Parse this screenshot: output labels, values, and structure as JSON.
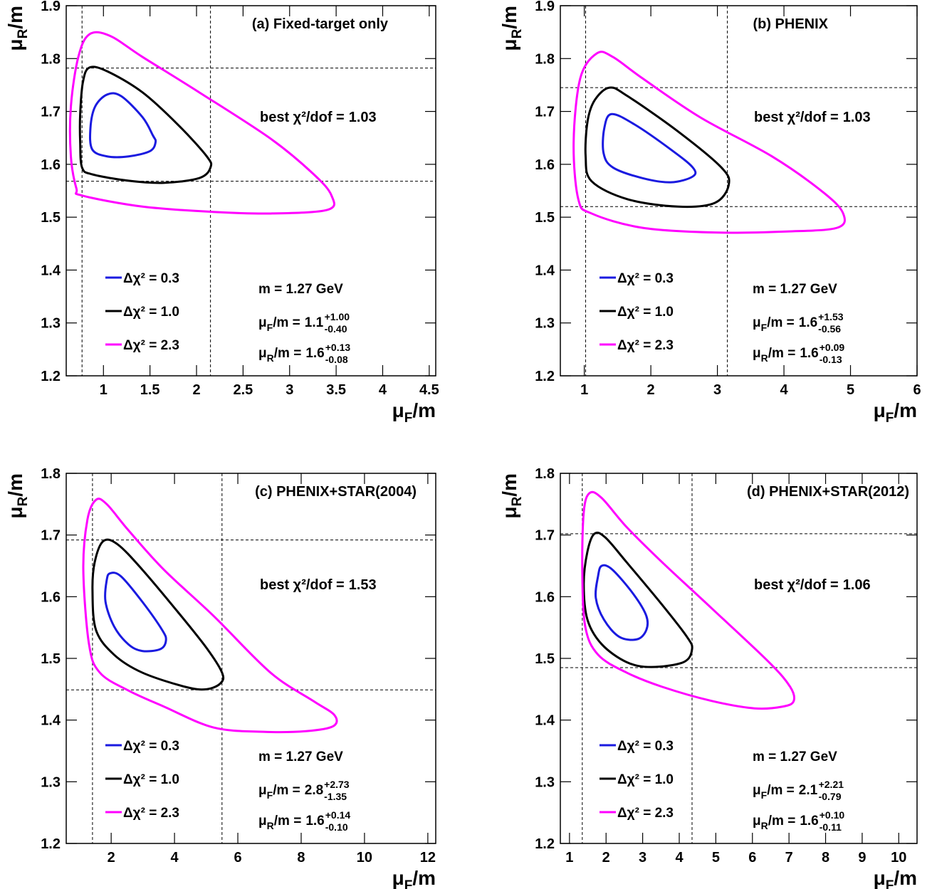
{
  "chart_data": [
    {
      "type": "contour",
      "title": "(a) Fixed-target only",
      "x_label": {
        "symbol": "μ",
        "sub": "F",
        "tail": "/m"
      },
      "y_label": {
        "symbol": "μ",
        "sub": "R",
        "tail": "/m"
      },
      "xlim": [
        0.6,
        4.57
      ],
      "ylim": [
        1.2,
        1.9
      ],
      "xticks": [
        1,
        1.5,
        2,
        2.5,
        3,
        3.5,
        4,
        4.5
      ],
      "yticks": [
        1.2,
        1.3,
        1.4,
        1.5,
        1.6,
        1.7,
        1.8,
        1.9
      ],
      "ref_lines": {
        "x": [
          0.77,
          2.15
        ],
        "y": [
          1.568,
          1.782
        ]
      },
      "best_fit": {
        "label": "best χ²/dof =",
        "value": 1.03
      },
      "mass": "m = 1.27 GeV",
      "results": [
        {
          "symbol": "μ",
          "sub": "F",
          "text": "/m =",
          "value": 1.1,
          "plus": "+1.00",
          "minus": "-0.40"
        },
        {
          "symbol": "μ",
          "sub": "R",
          "text": "/m =",
          "value": 1.6,
          "plus": "+0.13",
          "minus": "-0.08"
        }
      ],
      "series": [
        {
          "name": "Δχ² = 0.3",
          "color": "#1a1ae0",
          "x": [
            1.04,
            1.19,
            1.42,
            1.53,
            1.56,
            1.5,
            1.27,
            1.04,
            0.88,
            0.86,
            0.91
          ],
          "y": [
            1.732,
            1.729,
            1.689,
            1.655,
            1.642,
            1.625,
            1.615,
            1.615,
            1.628,
            1.668,
            1.709
          ]
        },
        {
          "name": "Δχ² = 1.0",
          "color": "#000000",
          "x": [
            0.85,
            1.04,
            1.42,
            1.8,
            2.11,
            2.15,
            2.03,
            1.65,
            1.27,
            0.88,
            0.77,
            0.75,
            0.75,
            0.78
          ],
          "y": [
            1.783,
            1.776,
            1.736,
            1.675,
            1.615,
            1.594,
            1.574,
            1.565,
            1.569,
            1.581,
            1.594,
            1.642,
            1.695,
            1.756
          ]
        },
        {
          "name": "Δχ² = 2.3",
          "color": "#ff00ff",
          "x": [
            0.85,
            1.07,
            1.42,
            2.03,
            2.8,
            3.26,
            3.45,
            3.41,
            2.8,
            2.18,
            1.42,
            0.77,
            0.71,
            0.65,
            0.65,
            0.73
          ],
          "y": [
            1.846,
            1.843,
            1.803,
            1.736,
            1.648,
            1.581,
            1.541,
            1.514,
            1.507,
            1.51,
            1.52,
            1.541,
            1.554,
            1.615,
            1.709,
            1.803
          ]
        }
      ]
    },
    {
      "type": "contour",
      "title": "(b) PHENIX",
      "x_label": {
        "symbol": "μ",
        "sub": "F",
        "tail": "/m"
      },
      "y_label": {
        "symbol": "μ",
        "sub": "R",
        "tail": "/m"
      },
      "xlim": [
        0.64,
        6
      ],
      "ylim": [
        1.2,
        1.9
      ],
      "xticks": [
        1,
        2,
        3,
        4,
        5,
        6
      ],
      "yticks": [
        1.2,
        1.3,
        1.4,
        1.5,
        1.6,
        1.7,
        1.8,
        1.9
      ],
      "ref_lines": {
        "x": [
          1.02,
          3.15
        ],
        "y": [
          1.52,
          1.745
        ]
      },
      "best_fit": {
        "label": "best χ²/dof =",
        "value": 1.03
      },
      "mass": "m = 1.27 GeV",
      "results": [
        {
          "symbol": "μ",
          "sub": "F",
          "text": "/m =",
          "value": 1.6,
          "plus": "+1.53",
          "minus": "-0.56"
        },
        {
          "symbol": "μ",
          "sub": "R",
          "text": "/m =",
          "value": 1.6,
          "plus": "+0.09",
          "minus": "-0.13"
        }
      ],
      "series": [
        {
          "name": "Δχ² = 0.3",
          "color": "#1a1ae0",
          "x": [
            1.41,
            1.76,
            2.3,
            2.63,
            2.63,
            2.3,
            1.87,
            1.43,
            1.29,
            1.3
          ],
          "y": [
            1.695,
            1.675,
            1.628,
            1.594,
            1.577,
            1.566,
            1.574,
            1.594,
            1.621,
            1.668
          ]
        },
        {
          "name": "Δχ² = 1.0",
          "color": "#000000",
          "x": [
            1.38,
            1.65,
            2.41,
            3.06,
            3.17,
            2.96,
            2.41,
            1.65,
            1.11,
            1.02,
            1.05,
            1.16
          ],
          "y": [
            1.745,
            1.729,
            1.662,
            1.594,
            1.561,
            1.527,
            1.52,
            1.534,
            1.568,
            1.615,
            1.682,
            1.722
          ]
        },
        {
          "name": "Δχ² = 2.3",
          "color": "#ff00ff",
          "x": [
            1.19,
            1.43,
            1.87,
            2.74,
            3.82,
            4.59,
            4.89,
            4.8,
            4.04,
            2.96,
            1.87,
            1.11,
            0.91,
            0.84,
            0.94
          ],
          "y": [
            1.81,
            1.803,
            1.763,
            1.689,
            1.615,
            1.547,
            1.507,
            1.48,
            1.473,
            1.471,
            1.48,
            1.507,
            1.534,
            1.642,
            1.763
          ]
        }
      ]
    },
    {
      "type": "contour",
      "title": "(c) PHENIX+STAR(2004)",
      "x_label": {
        "symbol": "μ",
        "sub": "F",
        "tail": "/m"
      },
      "y_label": {
        "symbol": "μ",
        "sub": "R",
        "tail": "/m"
      },
      "xlim": [
        0.58,
        12.25
      ],
      "ylim": [
        1.2,
        1.8
      ],
      "xticks": [
        2,
        4,
        6,
        8,
        10,
        12
      ],
      "yticks": [
        1.2,
        1.3,
        1.4,
        1.5,
        1.6,
        1.7,
        1.8
      ],
      "ref_lines": {
        "x": [
          1.41,
          5.5
        ],
        "y": [
          1.449,
          1.692
        ]
      },
      "best_fit": {
        "label": "best χ²/dof =",
        "value": 1.53
      },
      "mass": "m = 1.27 GeV",
      "results": [
        {
          "symbol": "μ",
          "sub": "F",
          "text": "/m =",
          "value": 2.8,
          "plus": "+2.73",
          "minus": "-1.35"
        },
        {
          "symbol": "μ",
          "sub": "R",
          "text": "/m =",
          "value": 1.6,
          "plus": "+0.14",
          "minus": "-0.10"
        }
      ],
      "series": [
        {
          "name": "Δχ² = 0.3",
          "color": "#1a1ae0",
          "x": [
            1.97,
            2.31,
            2.98,
            3.61,
            3.73,
            3.55,
            2.98,
            2.54,
            2.09,
            1.82,
            1.86
          ],
          "y": [
            1.638,
            1.633,
            1.592,
            1.546,
            1.529,
            1.515,
            1.512,
            1.523,
            1.552,
            1.592,
            1.627
          ]
        },
        {
          "name": "Δχ² = 1.0",
          "color": "#000000",
          "x": [
            1.75,
            2.2,
            2.98,
            4.11,
            5.01,
            5.5,
            5.46,
            5.01,
            4.33,
            2.98,
            2.09,
            1.52,
            1.41,
            1.48
          ],
          "y": [
            1.69,
            1.685,
            1.644,
            1.575,
            1.517,
            1.477,
            1.46,
            1.45,
            1.454,
            1.477,
            1.506,
            1.546,
            1.61,
            1.656
          ]
        },
        {
          "name": "Δχ² = 2.3",
          "color": "#ff00ff",
          "x": [
            1.52,
            1.86,
            2.54,
            3.66,
            5.23,
            7.03,
            8.38,
            9.05,
            9.01,
            8.15,
            6.8,
            5.23,
            3.66,
            2.54,
            1.64,
            1.3,
            1.12,
            1.25
          ],
          "y": [
            1.757,
            1.75,
            1.708,
            1.644,
            1.569,
            1.477,
            1.431,
            1.408,
            1.39,
            1.382,
            1.381,
            1.388,
            1.422,
            1.448,
            1.477,
            1.523,
            1.644,
            1.725
          ]
        }
      ]
    },
    {
      "type": "contour",
      "title": "(d) PHENIX+STAR(2012)",
      "x_label": {
        "symbol": "μ",
        "sub": "F",
        "tail": "/m"
      },
      "y_label": {
        "symbol": "μ",
        "sub": "R",
        "tail": "/m"
      },
      "xlim": [
        0.75,
        10.5
      ],
      "ylim": [
        1.2,
        1.8
      ],
      "xticks": [
        1,
        2,
        3,
        4,
        5,
        6,
        7,
        8,
        9,
        10
      ],
      "yticks": [
        1.2,
        1.3,
        1.4,
        1.5,
        1.6,
        1.7,
        1.8
      ],
      "ref_lines": {
        "x": [
          1.35,
          4.35
        ],
        "y": [
          1.485,
          1.702
        ]
      },
      "best_fit": {
        "label": "best χ²/dof =",
        "value": 1.06
      },
      "mass": "m = 1.27 GeV",
      "results": [
        {
          "symbol": "μ",
          "sub": "F",
          "text": "/m =",
          "value": 2.1,
          "plus": "+2.21",
          "minus": "-0.79"
        },
        {
          "symbol": "μ",
          "sub": "R",
          "text": "/m =",
          "value": 1.6,
          "plus": "+0.10",
          "minus": "-0.11"
        }
      ],
      "series": [
        {
          "name": "Δχ² = 0.3",
          "color": "#1a1ae0",
          "x": [
            1.88,
            2.17,
            2.75,
            3.1,
            3.1,
            2.85,
            2.36,
            1.94,
            1.72,
            1.78
          ],
          "y": [
            1.65,
            1.644,
            1.604,
            1.569,
            1.546,
            1.531,
            1.535,
            1.563,
            1.598,
            1.633
          ]
        },
        {
          "name": "Δχ² = 1.0",
          "color": "#000000",
          "x": [
            1.68,
            1.98,
            2.56,
            3.53,
            4.21,
            4.35,
            4.12,
            3.24,
            2.56,
            1.88,
            1.49,
            1.39,
            1.49
          ],
          "y": [
            1.702,
            1.696,
            1.656,
            1.587,
            1.535,
            1.515,
            1.494,
            1.486,
            1.494,
            1.523,
            1.563,
            1.621,
            1.673
          ]
        },
        {
          "name": "Δχ² = 2.3",
          "color": "#ff00ff",
          "x": [
            1.55,
            1.88,
            2.56,
            3.53,
            4.89,
            6.45,
            7.03,
            7.13,
            6.84,
            6.06,
            4.89,
            3.53,
            2.56,
            1.78,
            1.43,
            1.35,
            1.39
          ],
          "y": [
            1.768,
            1.76,
            1.713,
            1.656,
            1.581,
            1.494,
            1.454,
            1.431,
            1.422,
            1.419,
            1.431,
            1.454,
            1.477,
            1.506,
            1.552,
            1.644,
            1.737
          ]
        }
      ]
    }
  ]
}
